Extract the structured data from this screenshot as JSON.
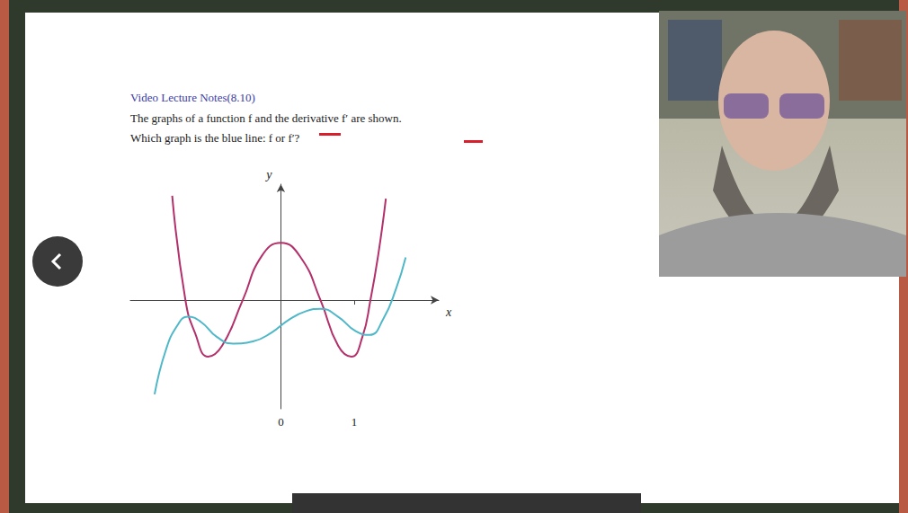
{
  "slide": {
    "heading": "Video Lecture Notes(8.10)",
    "lines": [
      "The graphs of a function f and the derivative f′ are shown.",
      "Which graph is the blue line: f or f′?"
    ]
  },
  "chart_data": {
    "type": "line",
    "x_label": "x",
    "y_label": "y",
    "xlim": [
      -2.05,
      2.15
    ],
    "ylim": [
      -1.5,
      1.6
    ],
    "xticks": [
      0,
      1
    ],
    "tick_labels": "x",
    "grid": false,
    "series": [
      {
        "color": "#b3306a",
        "line_style": "solid",
        "x": [
          -1.48,
          -1.3,
          -1.17,
          -0.99,
          -0.8,
          -0.52,
          -0.26,
          0,
          0.27,
          0.54,
          0.78,
          0.96,
          1.11,
          1.22,
          1.33,
          1.43
        ],
        "values": [
          1.44,
          0,
          -0.45,
          -0.78,
          -0.63,
          0,
          0.61,
          0.79,
          0.59,
          0,
          -0.63,
          -0.78,
          -0.51,
          0,
          0.65,
          1.4
        ]
      },
      {
        "color": "#4fb8c8",
        "line_style": "solid",
        "x": [
          -1.72,
          -1.57,
          -1.41,
          -1.27,
          -1.09,
          -0.87,
          -0.65,
          -0.38,
          -0.13,
          0.11,
          0.35,
          0.54,
          0.78,
          1.02,
          1.21,
          1.39,
          1.57,
          1.7
        ],
        "values": [
          -1.3,
          -0.7,
          -0.35,
          -0.23,
          -0.3,
          -0.51,
          -0.6,
          -0.57,
          -0.45,
          -0.27,
          -0.15,
          -0.12,
          -0.23,
          -0.43,
          -0.48,
          -0.27,
          0.16,
          0.59
        ]
      }
    ]
  }
}
